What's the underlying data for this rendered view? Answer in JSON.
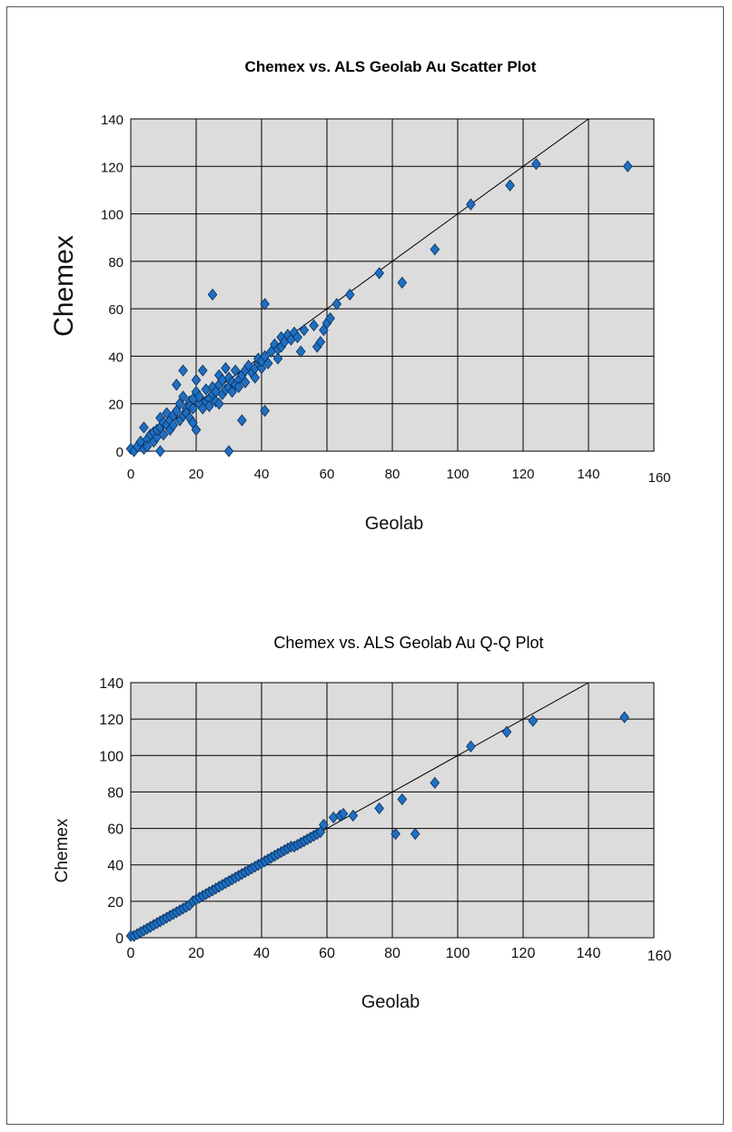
{
  "chart_data": [
    {
      "type": "scatter",
      "title": "Chemex vs. ALS Geolab Au Scatter Plot",
      "xlabel": "Geolab",
      "ylabel": "Chemex",
      "xlim": [
        0,
        160
      ],
      "ylim": [
        0,
        140
      ],
      "xticks": [
        "0",
        "20",
        "40",
        "60",
        "80",
        "100",
        "120",
        "140",
        "160"
      ],
      "yticks": [
        "0",
        "20",
        "40",
        "60",
        "80",
        "100",
        "120",
        "140"
      ],
      "grid": true,
      "legend": "none",
      "reference_line": {
        "from": [
          0,
          0
        ],
        "to": [
          140,
          140
        ]
      },
      "marker_color": "#1f6fc2",
      "plot_background": "#dcdcdc",
      "series": [
        {
          "points": [
            [
              0,
              1
            ],
            [
              1,
              0
            ],
            [
              2,
              2
            ],
            [
              3,
              4
            ],
            [
              4,
              1
            ],
            [
              4,
              10
            ],
            [
              5,
              5
            ],
            [
              5,
              2
            ],
            [
              6,
              7
            ],
            [
              7,
              4
            ],
            [
              7,
              8
            ],
            [
              8,
              6
            ],
            [
              8,
              9
            ],
            [
              9,
              10
            ],
            [
              9,
              0
            ],
            [
              9,
              14
            ],
            [
              10,
              12
            ],
            [
              10,
              7
            ],
            [
              11,
              16
            ],
            [
              11,
              11
            ],
            [
              12,
              13
            ],
            [
              12,
              9
            ],
            [
              13,
              15
            ],
            [
              13,
              11
            ],
            [
              14,
              17
            ],
            [
              14,
              28
            ],
            [
              15,
              13
            ],
            [
              15,
              20
            ],
            [
              16,
              15
            ],
            [
              16,
              23
            ],
            [
              16,
              34
            ],
            [
              17,
              18
            ],
            [
              17,
              16
            ],
            [
              18,
              21
            ],
            [
              18,
              19
            ],
            [
              18,
              14
            ],
            [
              19,
              22
            ],
            [
              19,
              18
            ],
            [
              19,
              12
            ],
            [
              20,
              9
            ],
            [
              20,
              25
            ],
            [
              20,
              30
            ],
            [
              21,
              20
            ],
            [
              21,
              23
            ],
            [
              22,
              18
            ],
            [
              22,
              34
            ],
            [
              23,
              21
            ],
            [
              23,
              26
            ],
            [
              24,
              22
            ],
            [
              24,
              19
            ],
            [
              25,
              66
            ],
            [
              25,
              24
            ],
            [
              25,
              27
            ],
            [
              26,
              25
            ],
            [
              26,
              21
            ],
            [
              27,
              28
            ],
            [
              27,
              20
            ],
            [
              27,
              32
            ],
            [
              28,
              30
            ],
            [
              28,
              24
            ],
            [
              29,
              26
            ],
            [
              29,
              35
            ],
            [
              30,
              0
            ],
            [
              30,
              27
            ],
            [
              30,
              31
            ],
            [
              31,
              25
            ],
            [
              31,
              29
            ],
            [
              32,
              34
            ],
            [
              32,
              28
            ],
            [
              33,
              30
            ],
            [
              33,
              27
            ],
            [
              34,
              13
            ],
            [
              34,
              32
            ],
            [
              35,
              34
            ],
            [
              35,
              29
            ],
            [
              36,
              36
            ],
            [
              37,
              33
            ],
            [
              38,
              31
            ],
            [
              38,
              35
            ],
            [
              39,
              37
            ],
            [
              39,
              39
            ],
            [
              40,
              35
            ],
            [
              40,
              38
            ],
            [
              41,
              17
            ],
            [
              41,
              62
            ],
            [
              41,
              40
            ],
            [
              42,
              37
            ],
            [
              43,
              42
            ],
            [
              44,
              45
            ],
            [
              45,
              39
            ],
            [
              45,
              43
            ],
            [
              46,
              48
            ],
            [
              46,
              44
            ],
            [
              47,
              46
            ],
            [
              48,
              49
            ],
            [
              49,
              47
            ],
            [
              50,
              50
            ],
            [
              51,
              48
            ],
            [
              52,
              42
            ],
            [
              53,
              51
            ],
            [
              56,
              53
            ],
            [
              57,
              44
            ],
            [
              58,
              46
            ],
            [
              59,
              51
            ],
            [
              60,
              54
            ],
            [
              61,
              56
            ],
            [
              63,
              62
            ],
            [
              67,
              66
            ],
            [
              76,
              75
            ],
            [
              83,
              71
            ],
            [
              93,
              85
            ],
            [
              104,
              104
            ],
            [
              116,
              112
            ],
            [
              124,
              121
            ],
            [
              152,
              120
            ]
          ]
        }
      ]
    },
    {
      "type": "scatter",
      "title": "Chemex vs. ALS Geolab Au Q-Q Plot",
      "xlabel": "Geolab",
      "ylabel": "Chemex",
      "xlim": [
        0,
        160
      ],
      "ylim": [
        0,
        140
      ],
      "xticks": [
        "0",
        "20",
        "40",
        "60",
        "80",
        "100",
        "120",
        "140",
        "160"
      ],
      "yticks": [
        "0",
        "20",
        "40",
        "60",
        "80",
        "100",
        "120",
        "140"
      ],
      "grid": true,
      "legend": "none",
      "reference_line": {
        "from": [
          0,
          0
        ],
        "to": [
          140,
          140
        ]
      },
      "marker_color": "#1f6fc2",
      "plot_background": "#dcdcdc",
      "series": [
        {
          "points": [
            [
              0,
              1
            ],
            [
              1,
              1
            ],
            [
              2,
              2
            ],
            [
              3,
              3
            ],
            [
              4,
              4
            ],
            [
              5,
              5
            ],
            [
              6,
              6
            ],
            [
              7,
              7
            ],
            [
              8,
              8
            ],
            [
              9,
              9
            ],
            [
              10,
              10
            ],
            [
              11,
              11
            ],
            [
              12,
              12
            ],
            [
              13,
              13
            ],
            [
              14,
              14
            ],
            [
              15,
              15
            ],
            [
              16,
              16
            ],
            [
              17,
              17
            ],
            [
              18,
              18
            ],
            [
              19,
              20
            ],
            [
              20,
              21
            ],
            [
              21,
              22
            ],
            [
              22,
              23
            ],
            [
              23,
              24
            ],
            [
              24,
              25
            ],
            [
              25,
              26
            ],
            [
              26,
              27
            ],
            [
              27,
              28
            ],
            [
              28,
              29
            ],
            [
              29,
              30
            ],
            [
              30,
              31
            ],
            [
              31,
              32
            ],
            [
              32,
              33
            ],
            [
              33,
              34
            ],
            [
              34,
              35
            ],
            [
              35,
              36
            ],
            [
              36,
              37
            ],
            [
              37,
              38
            ],
            [
              38,
              39
            ],
            [
              39,
              40
            ],
            [
              40,
              41
            ],
            [
              41,
              42
            ],
            [
              42,
              43
            ],
            [
              43,
              44
            ],
            [
              44,
              45
            ],
            [
              45,
              46
            ],
            [
              46,
              47
            ],
            [
              47,
              48
            ],
            [
              48,
              49
            ],
            [
              49,
              50
            ],
            [
              50,
              50
            ],
            [
              51,
              51
            ],
            [
              52,
              52
            ],
            [
              53,
              53
            ],
            [
              54,
              54
            ],
            [
              55,
              55
            ],
            [
              56,
              56
            ],
            [
              57,
              57
            ],
            [
              58,
              58
            ],
            [
              59,
              62
            ],
            [
              62,
              66
            ],
            [
              64,
              67
            ],
            [
              65,
              68
            ],
            [
              68,
              67
            ],
            [
              76,
              71
            ],
            [
              81,
              57
            ],
            [
              83,
              76
            ],
            [
              87,
              57
            ],
            [
              93,
              85
            ],
            [
              104,
              105
            ],
            [
              115,
              113
            ],
            [
              123,
              119
            ],
            [
              151,
              121
            ]
          ]
        }
      ]
    }
  ]
}
